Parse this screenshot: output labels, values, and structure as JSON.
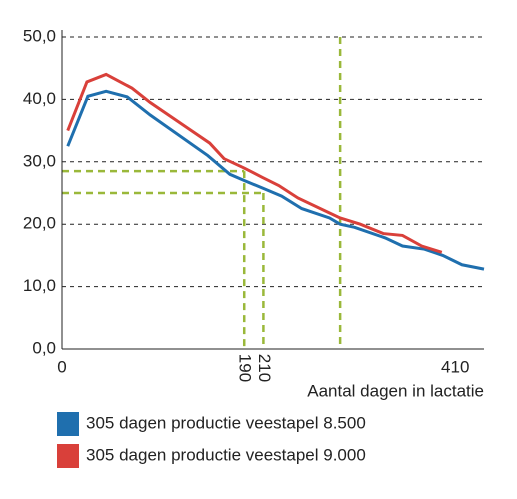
{
  "chart_data": {
    "type": "line",
    "xlabel": "Aantal dagen in lactatie",
    "xlim": [
      0,
      440
    ],
    "xticks": [
      0,
      190,
      210,
      410
    ],
    "ylim": [
      0,
      50
    ],
    "yticks": [
      {
        "value": 0,
        "label": "0,0"
      },
      {
        "value": 10,
        "label": "10,0"
      },
      {
        "value": 20,
        "label": "20,0"
      },
      {
        "value": 30,
        "label": "30,0"
      },
      {
        "value": 40,
        "label": "40,0"
      },
      {
        "value": 50,
        "label": "50,0"
      }
    ],
    "grid": true,
    "guide_color": "#9ab83a",
    "guides": [
      {
        "x": 190,
        "y": 28.5
      },
      {
        "x": 210,
        "y": 25
      },
      {
        "x": 290
      }
    ],
    "series": [
      {
        "name": "305 dagen productie veestapel 8.500",
        "color": "#1f6fae",
        "x": [
          6,
          27,
          46,
          68,
          92,
          152,
          175,
          190,
          209,
          229,
          250,
          279,
          290,
          305,
          337,
          355,
          378,
          397,
          417,
          440
        ],
        "values": [
          32.5,
          40.5,
          41.3,
          40.4,
          37.5,
          31.0,
          28.0,
          27.0,
          25.8,
          24.5,
          22.5,
          21.0,
          20.0,
          19.5,
          17.8,
          16.5,
          16.0,
          15.0,
          13.5,
          12.8
        ]
      },
      {
        "name": "305 dagen productie veestapel 9.000",
        "color": "#d9403a",
        "x": [
          6,
          26,
          46,
          73,
          92,
          154,
          169,
          190,
          209,
          226,
          246,
          279,
          290,
          311,
          335,
          355,
          375,
          396
        ],
        "values": [
          35.0,
          42.8,
          44.0,
          41.8,
          39.5,
          33.0,
          30.5,
          29.0,
          27.5,
          26.2,
          24.2,
          21.8,
          21.0,
          20.0,
          18.5,
          18.2,
          16.5,
          15.5
        ]
      }
    ]
  }
}
